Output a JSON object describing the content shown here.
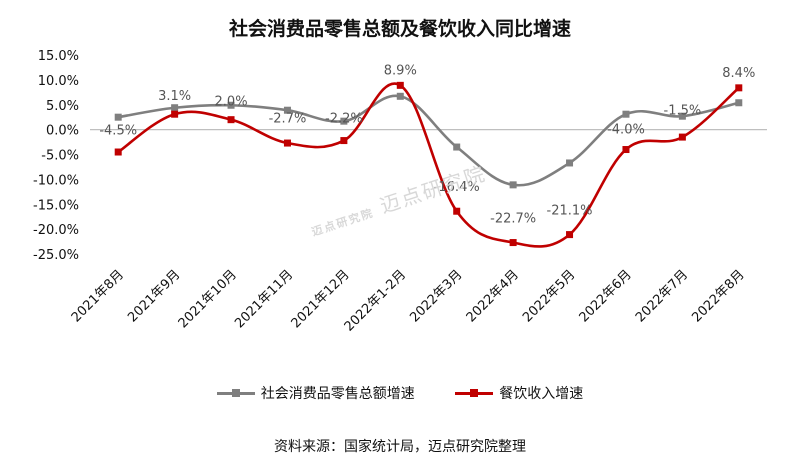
{
  "chart_data": {
    "type": "line",
    "title": "社会消费品零售总额及餐饮收入同比增速",
    "categories": [
      "2021年8月",
      "2021年9月",
      "2021年10月",
      "2021年11月",
      "2021年12月",
      "2022年1-2月",
      "2022年3月",
      "2022年4月",
      "2022年5月",
      "2022年6月",
      "2022年7月",
      "2022年8月"
    ],
    "ylim": [
      -25,
      15
    ],
    "yticks": [
      "15.0%",
      "10.0%",
      "5.0%",
      "0.0%",
      "-5.0%",
      "-10.0%",
      "-15.0%",
      "-20.0%",
      "-25.0%"
    ],
    "series": [
      {
        "name": "社会消费品零售总额增速",
        "color": "#7f7f7f",
        "marker": "square",
        "values": [
          2.5,
          4.4,
          4.9,
          3.9,
          1.7,
          6.7,
          -3.5,
          -11.1,
          -6.7,
          3.1,
          2.7,
          5.4
        ]
      },
      {
        "name": "餐饮收入增速",
        "color": "#c00000",
        "marker": "square",
        "values": [
          -4.5,
          3.1,
          2.0,
          -2.7,
          -2.2,
          8.9,
          -16.4,
          -22.7,
          -21.1,
          -4.0,
          -1.5,
          8.4
        ]
      }
    ],
    "data_labels": [
      "-4.5%",
      "3.1%",
      "2.0%",
      "-2.7%",
      "-2.2%",
      "8.9%",
      "-16.4%",
      "-22.7%",
      "-21.1%",
      "-4.0%",
      "-1.5%",
      "8.4%"
    ],
    "grid": false,
    "legend_position": "bottom"
  },
  "source_note": "资料来源：国家统计局，迈点研究院整理",
  "watermark": {
    "logo_text": "迈点研究院",
    "text": "迈点研究院"
  }
}
